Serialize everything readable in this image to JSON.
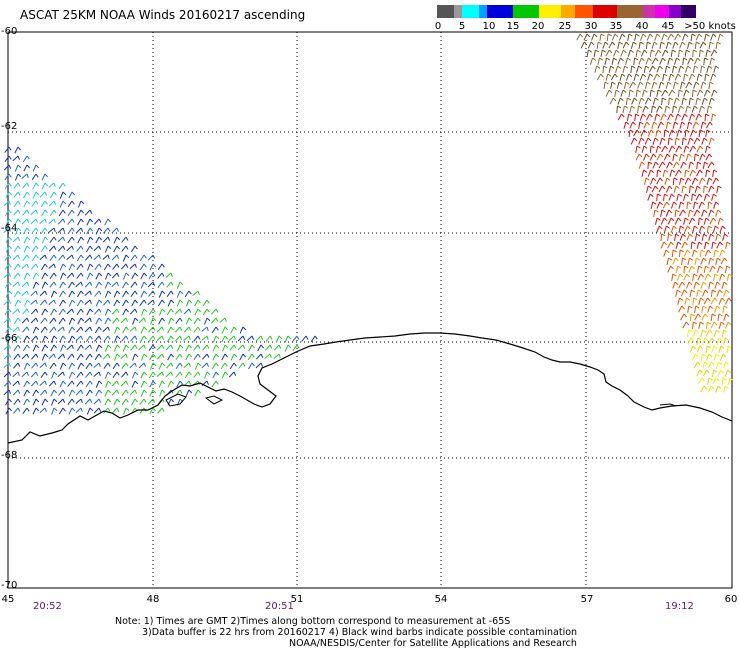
{
  "header": {
    "title": "ASCAT 25KM NOAA Winds 20160217 ascending"
  },
  "legend": {
    "labels": [
      "0",
      "5",
      "10",
      "15",
      "20",
      "25",
      "30",
      "35",
      "40",
      "45",
      ">50 knots"
    ],
    "colors": [
      "#555555",
      "#999999",
      "#00ffff",
      "#00a0ff",
      "#0000dd",
      "#00c800",
      "#ffee00",
      "#ffaa00",
      "#ff5500",
      "#dd0000",
      "#996633",
      "#cc33aa",
      "#ee00ee",
      "#8800cc",
      "#330066"
    ]
  },
  "axes": {
    "lat_labels": [
      "-60",
      "-62",
      "-64",
      "-66",
      "-68",
      "-70"
    ],
    "lon_labels": [
      "45",
      "48",
      "51",
      "54",
      "57",
      "60"
    ]
  },
  "pass_times": [
    "20:52",
    "20:51",
    "19:12"
  ],
  "notes": {
    "line1": "Note: 1) Times are GMT 2)Times along bottom correspond to measurement at -65S",
    "line2": "3)Data buffer is 22 hrs from 20160217 4) Black wind barbs indicate possible contamination",
    "line3": "NOAA/NESDIS/Center for Satellite Applications and Research"
  }
}
